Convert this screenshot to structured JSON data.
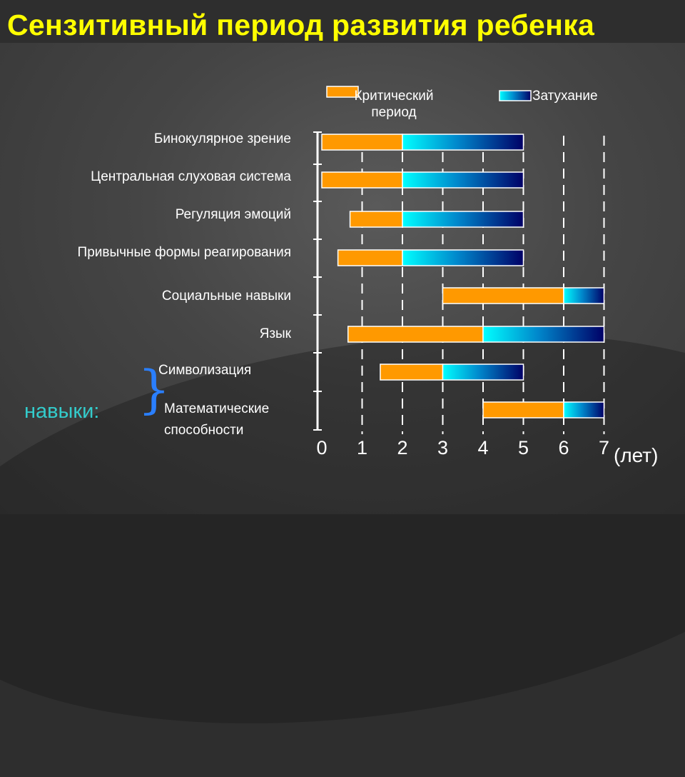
{
  "title": "Сензитивный период развития ребенка",
  "legend": {
    "critical": "Критический период",
    "fading": "Затухание"
  },
  "skills_label": "навыки:",
  "unit_label": "(лет)",
  "colors": {
    "critical": "#ff9900",
    "fading_start": "#00ffff",
    "fading_end": "#000066",
    "title": "#ffff00",
    "skills": "#33cccc"
  },
  "chart_data": {
    "type": "bar",
    "orientation": "horizontal",
    "stacked_ranges": true,
    "title": "Сензитивный период развития ребенка",
    "xlabel": "(лет)",
    "xlim": [
      0,
      7
    ],
    "xticks": [
      0,
      1,
      2,
      3,
      4,
      5,
      6,
      7
    ],
    "grid": "vertical dashed",
    "legend_position": "top",
    "categories": [
      "Бинокулярное зрение",
      "Центральная слуховая система",
      "Регуляция эмоций",
      "Привычные формы реагирования",
      "Социальные навыки",
      "Язык",
      "Символизация",
      "Математические способности"
    ],
    "series": [
      {
        "name": "Критический период",
        "ranges": [
          [
            0,
            2
          ],
          [
            0,
            2
          ],
          [
            0.7,
            2
          ],
          [
            0.4,
            2
          ],
          [
            3,
            6
          ],
          [
            0.65,
            4
          ],
          [
            1.45,
            3
          ],
          [
            4,
            6
          ]
        ]
      },
      {
        "name": "Затухание",
        "ranges": [
          [
            2,
            5
          ],
          [
            2,
            5
          ],
          [
            2,
            5
          ],
          [
            2,
            5
          ],
          [
            6,
            7
          ],
          [
            4,
            7
          ],
          [
            3,
            5
          ],
          [
            6,
            7
          ]
        ]
      }
    ]
  }
}
